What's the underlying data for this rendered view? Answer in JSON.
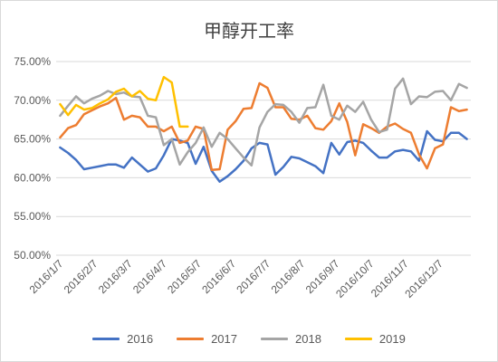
{
  "chart_data": {
    "type": "line",
    "title": "甲醇开工率",
    "xlabel": "",
    "ylabel": "",
    "ylim": [
      50,
      75
    ],
    "y_ticks": [
      "50.00%",
      "55.00%",
      "60.00%",
      "65.00%",
      "70.00%",
      "75.00%"
    ],
    "x_tick_labels": [
      "2016/1/7",
      "2016/2/7",
      "2016/3/7",
      "2016/4/7",
      "2016/5/7",
      "2016/6/7",
      "2016/7/7",
      "2016/8/7",
      "2016/9/7",
      "2016/10/7",
      "2016/11/7",
      "2016/12/7"
    ],
    "grid": true,
    "legend_position": "bottom",
    "series": [
      {
        "name": "2016",
        "color": "#4472c4",
        "values": [
          63.9,
          63.2,
          62.3,
          61.1,
          61.3,
          61.5,
          61.7,
          61.7,
          61.3,
          62.6,
          61.7,
          60.8,
          61.2,
          62.9,
          65.0,
          64.8,
          64.5,
          61.8,
          64.0,
          60.9,
          59.5,
          60.2,
          61.1,
          62.2,
          63.8,
          64.5,
          64.3,
          60.4,
          61.4,
          62.7,
          62.5,
          62.0,
          61.5,
          60.6,
          64.5,
          63.0,
          64.6,
          64.8,
          64.5,
          63.5,
          62.6,
          62.6,
          63.4,
          63.6,
          63.4,
          62.2,
          66.0,
          64.9,
          64.7,
          65.8,
          65.8,
          65.0
        ]
      },
      {
        "name": "2017",
        "color": "#ed7d31",
        "values": [
          65.2,
          66.4,
          66.8,
          68.2,
          68.7,
          69.2,
          69.6,
          70.3,
          67.5,
          68.0,
          67.8,
          66.6,
          66.6,
          66.0,
          66.6,
          64.5,
          64.8,
          66.6,
          66.3,
          61.0,
          61.1,
          66.2,
          67.3,
          68.9,
          69.0,
          72.2,
          71.6,
          69.1,
          69.1,
          67.6,
          67.5,
          68.0,
          66.4,
          66.2,
          67.3,
          69.6,
          67.2,
          62.9,
          66.9,
          66.4,
          65.8,
          66.6,
          67.0,
          66.3,
          65.8,
          63.0,
          61.2,
          63.8,
          64.3,
          69.1,
          68.6,
          68.8
        ]
      },
      {
        "name": "2018",
        "color": "#a5a5a5",
        "values": [
          68.0,
          69.3,
          70.5,
          69.6,
          70.2,
          70.6,
          71.2,
          70.8,
          71.0,
          70.5,
          70.4,
          68.0,
          67.8,
          64.2,
          65.0,
          61.7,
          63.3,
          64.5,
          66.5,
          64.0,
          65.8,
          65.0,
          63.8,
          62.6,
          61.6,
          66.5,
          68.5,
          69.5,
          69.4,
          68.5,
          67.1,
          69.0,
          69.1,
          72.0,
          68.0,
          67.5,
          69.3,
          68.5,
          69.8,
          67.5,
          65.9,
          66.2,
          71.5,
          72.8,
          69.5,
          70.5,
          70.4,
          71.1,
          71.2,
          70.0,
          72.1,
          71.6
        ]
      },
      {
        "name": "2019",
        "color": "#ffc000",
        "values": [
          69.5,
          68.1,
          69.4,
          68.8,
          69.0,
          69.6,
          70.1,
          71.1,
          71.5,
          70.5,
          71.2,
          70.2,
          70.0,
          73.0,
          72.3,
          66.6,
          66.6
        ]
      }
    ]
  }
}
